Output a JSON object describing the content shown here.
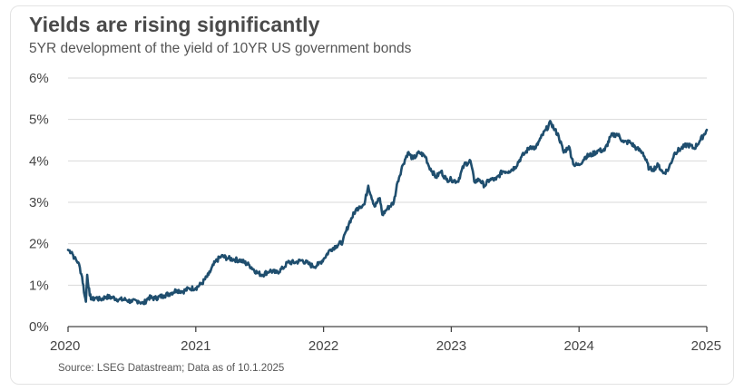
{
  "header": {
    "title": "Yields are rising significantly",
    "subtitle": "5YR development of the yield of 10YR US government bonds"
  },
  "footer": {
    "source": "Source: LSEG Datastream; Data as of 10.1.2025"
  },
  "colors": {
    "line": "#1f4e6e",
    "grid": "#d9d9d9",
    "axis": "#444444"
  },
  "chart_data": {
    "type": "line",
    "title": "Yields are rising significantly",
    "subtitle": "5YR development of the yield of 10YR US government bonds",
    "xlabel": "",
    "ylabel": "",
    "x_tick_labels": [
      "2020",
      "2021",
      "2022",
      "2023",
      "2024",
      "2025"
    ],
    "y_tick_labels": [
      "0%",
      "1%",
      "2%",
      "3%",
      "4%",
      "5%",
      "6%"
    ],
    "xlim": [
      2020.0,
      2025.0
    ],
    "ylim": [
      0,
      6
    ],
    "grid": "horizontal",
    "series": [
      {
        "name": "",
        "x": [
          2020.0,
          2020.03,
          2020.05,
          2020.08,
          2020.11,
          2020.13,
          2020.14,
          2020.15,
          2020.17,
          2020.19,
          2020.22,
          2020.25,
          2020.3,
          2020.35,
          2020.4,
          2020.45,
          2020.5,
          2020.55,
          2020.59,
          2020.63,
          2020.68,
          2020.75,
          2020.8,
          2020.85,
          2020.9,
          2020.95,
          2021.0,
          2021.05,
          2021.1,
          2021.15,
          2021.2,
          2021.25,
          2021.3,
          2021.35,
          2021.42,
          2021.48,
          2021.52,
          2021.58,
          2021.63,
          2021.68,
          2021.72,
          2021.78,
          2021.83,
          2021.88,
          2021.92,
          2021.96,
          2022.0,
          2022.05,
          2022.1,
          2022.15,
          2022.2,
          2022.25,
          2022.28,
          2022.32,
          2022.35,
          2022.4,
          2022.44,
          2022.46,
          2022.5,
          2022.55,
          2022.58,
          2022.62,
          2022.66,
          2022.7,
          2022.75,
          2022.8,
          2022.82,
          2022.85,
          2022.88,
          2022.92,
          2022.96,
          2023.0,
          2023.05,
          2023.1,
          2023.15,
          2023.18,
          2023.22,
          2023.26,
          2023.3,
          2023.35,
          2023.4,
          2023.45,
          2023.5,
          2023.55,
          2023.58,
          2023.62,
          2023.66,
          2023.7,
          2023.74,
          2023.78,
          2023.8,
          2023.84,
          2023.88,
          2023.92,
          2023.96,
          2024.0,
          2024.05,
          2024.1,
          2024.15,
          2024.2,
          2024.25,
          2024.3,
          2024.35,
          2024.4,
          2024.45,
          2024.5,
          2024.55,
          2024.58,
          2024.62,
          2024.66,
          2024.7,
          2024.75,
          2024.8,
          2024.85,
          2024.9,
          2024.95,
          2025.0
        ],
        "y": [
          1.85,
          1.8,
          1.65,
          1.55,
          1.2,
          0.75,
          0.6,
          1.25,
          0.75,
          0.65,
          0.7,
          0.65,
          0.72,
          0.7,
          0.65,
          0.65,
          0.6,
          0.62,
          0.55,
          0.7,
          0.68,
          0.75,
          0.8,
          0.88,
          0.85,
          0.92,
          0.93,
          1.05,
          1.25,
          1.55,
          1.7,
          1.65,
          1.62,
          1.6,
          1.48,
          1.3,
          1.25,
          1.35,
          1.3,
          1.4,
          1.55,
          1.55,
          1.6,
          1.52,
          1.45,
          1.5,
          1.63,
          1.85,
          1.95,
          2.05,
          2.5,
          2.8,
          2.9,
          2.95,
          3.4,
          2.9,
          3.1,
          2.7,
          2.85,
          3.0,
          3.5,
          3.9,
          4.2,
          4.05,
          4.2,
          4.1,
          3.9,
          3.75,
          3.6,
          3.75,
          3.55,
          3.55,
          3.5,
          3.9,
          4.0,
          3.5,
          3.55,
          3.4,
          3.55,
          3.55,
          3.75,
          3.75,
          3.85,
          4.1,
          4.2,
          4.35,
          4.3,
          4.55,
          4.75,
          4.93,
          4.8,
          4.6,
          4.2,
          4.35,
          3.9,
          3.9,
          4.1,
          4.15,
          4.25,
          4.25,
          4.6,
          4.65,
          4.45,
          4.45,
          4.3,
          4.2,
          3.8,
          3.8,
          3.9,
          3.7,
          3.8,
          4.2,
          4.3,
          4.4,
          4.3,
          4.5,
          4.75
        ]
      }
    ]
  }
}
